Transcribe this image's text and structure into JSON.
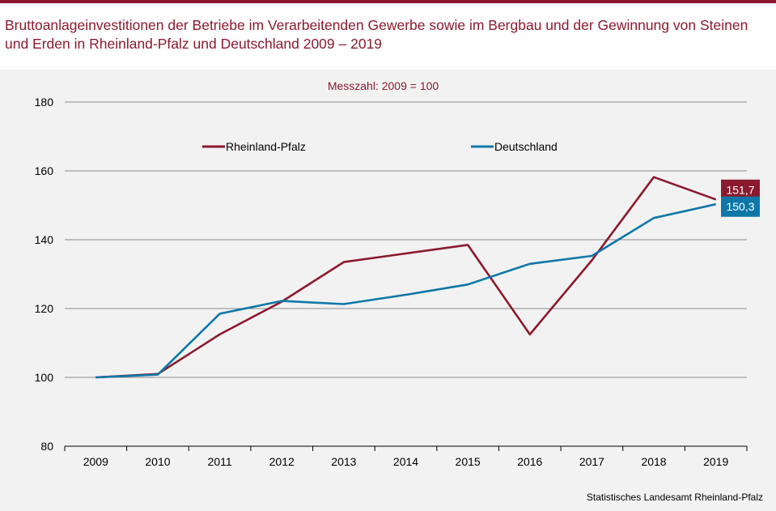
{
  "title": "Bruttoanlageinvestitionen der Betriebe im Verarbeitenden Gewerbe sowie im Bergbau und der Gewinnung von Steinen und Erden in Rheinland-Pfalz und Deutschland 2009 – 2019",
  "source": "Statistisches Landesamt  Rheinland-Pfalz",
  "colors": {
    "accent": "#8b1a2e",
    "rlp": "#8b1a2e",
    "de": "#0e77a8",
    "panel": "#f2f2f2"
  },
  "chart_data": {
    "type": "line",
    "subtitle": "Messzahl: 2009 = 100",
    "categories": [
      "2009",
      "2010",
      "2011",
      "2012",
      "2013",
      "2014",
      "2015",
      "2016",
      "2017",
      "2018",
      "2019"
    ],
    "series": [
      {
        "name": "Rheinland-Pfalz",
        "color": "#8b1a2e",
        "values": [
          100,
          101,
          112.5,
          122,
          133.5,
          136,
          138.5,
          112.5,
          134,
          158.2,
          151.7
        ],
        "end_label": "151,7"
      },
      {
        "name": "Deutschland",
        "color": "#0e77a8",
        "values": [
          100,
          100.8,
          118.5,
          122.2,
          121.3,
          124,
          127,
          133,
          135.3,
          146.3,
          150.3
        ],
        "end_label": "150,3"
      }
    ],
    "ylim": [
      80,
      180
    ],
    "yticks": [
      80,
      100,
      120,
      140,
      160,
      180
    ],
    "grid": true,
    "legend": "top"
  }
}
